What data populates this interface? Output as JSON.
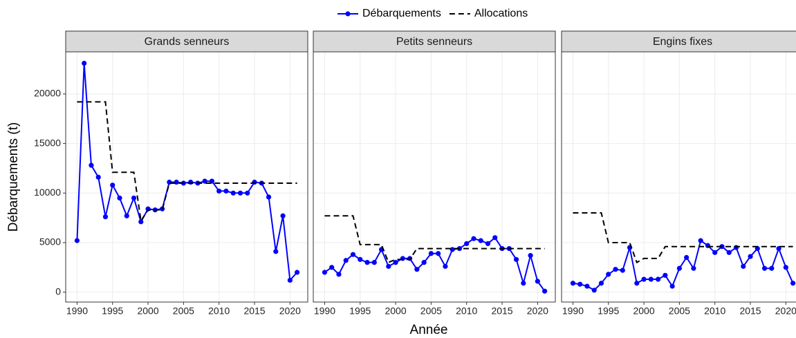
{
  "legend_position": "top",
  "chart_data": [
    {
      "type": "line",
      "title": "Grands senneurs",
      "xlabel": "Année",
      "ylabel": "Débarquements (t)",
      "x": [
        1990,
        1991,
        1992,
        1993,
        1994,
        1995,
        1996,
        1997,
        1998,
        1999,
        2000,
        2001,
        2002,
        2003,
        2004,
        2005,
        2006,
        2007,
        2008,
        2009,
        2010,
        2011,
        2012,
        2013,
        2014,
        2015,
        2016,
        2017,
        2018,
        2019,
        2020,
        2021
      ],
      "xlim": [
        1988.4,
        2022.5
      ],
      "ylim": [
        -1000,
        24250
      ],
      "xticks": [
        1990,
        1995,
        2000,
        2005,
        2010,
        2015,
        2020
      ],
      "yticks": [
        0,
        5000,
        10000,
        15000,
        20000
      ],
      "grid": true,
      "series": [
        {
          "name": "Débarquements",
          "color": "#0000ff",
          "linestyle": "solid",
          "marker": "circle",
          "values": [
            5200,
            23100,
            12800,
            11600,
            7600,
            10800,
            9500,
            7700,
            9500,
            7100,
            8400,
            8300,
            8400,
            11100,
            11100,
            11000,
            11100,
            11000,
            11200,
            11200,
            10200,
            10200,
            10000,
            10000,
            10000,
            11100,
            11000,
            9600,
            4100,
            7700,
            1200,
            2000
          ]
        },
        {
          "name": "Allocations",
          "color": "#000000",
          "linestyle": "dashed",
          "values": [
            19200,
            19200,
            19200,
            19200,
            19200,
            12100,
            12100,
            12100,
            12100,
            7200,
            8300,
            8300,
            8300,
            11000,
            11000,
            11000,
            11000,
            11000,
            11000,
            11000,
            11000,
            11000,
            11000,
            11000,
            11000,
            11000,
            11000,
            11000,
            11000,
            11000,
            11000,
            11000
          ]
        }
      ]
    },
    {
      "type": "line",
      "title": "Petits senneurs",
      "x": [
        1990,
        1991,
        1992,
        1993,
        1994,
        1995,
        1996,
        1997,
        1998,
        1999,
        2000,
        2001,
        2002,
        2003,
        2004,
        2005,
        2006,
        2007,
        2008,
        2009,
        2010,
        2011,
        2012,
        2013,
        2014,
        2015,
        2016,
        2017,
        2018,
        2019,
        2020,
        2021
      ],
      "xlim": [
        1988.4,
        2022.5
      ],
      "ylim": [
        -1000,
        24250
      ],
      "xticks": [
        1990,
        1995,
        2000,
        2005,
        2010,
        2015,
        2020
      ],
      "yticks": [
        0,
        5000,
        10000,
        15000,
        20000
      ],
      "grid": true,
      "series": [
        {
          "color": "#0000ff",
          "linestyle": "solid",
          "marker": "circle",
          "values": [
            2000,
            2500,
            1800,
            3200,
            3800,
            3300,
            3000,
            3000,
            4300,
            2600,
            3000,
            3400,
            3400,
            2300,
            3000,
            3900,
            3900,
            2600,
            4300,
            4400,
            4900,
            5400,
            5200,
            4900,
            5500,
            4400,
            4400,
            3300,
            900,
            3700,
            1100,
            100
          ]
        },
        {
          "color": "#000000",
          "linestyle": "dashed",
          "values": [
            7700,
            7700,
            7700,
            7700,
            7700,
            4800,
            4800,
            4800,
            4800,
            3000,
            3300,
            3300,
            3300,
            4400,
            4400,
            4400,
            4400,
            4400,
            4400,
            4400,
            4400,
            4400,
            4400,
            4400,
            4400,
            4400,
            4400,
            4400,
            4400,
            4400,
            4400,
            4400
          ]
        }
      ]
    },
    {
      "type": "line",
      "title": "Engins fixes",
      "x": [
        1990,
        1991,
        1992,
        1993,
        1994,
        1995,
        1996,
        1997,
        1998,
        1999,
        2000,
        2001,
        2002,
        2003,
        2004,
        2005,
        2006,
        2007,
        2008,
        2009,
        2010,
        2011,
        2012,
        2013,
        2014,
        2015,
        2016,
        2017,
        2018,
        2019,
        2020,
        2021
      ],
      "xlim": [
        1988.4,
        2022.5
      ],
      "ylim": [
        -1000,
        24250
      ],
      "xticks": [
        1990,
        1995,
        2000,
        2005,
        2010,
        2015,
        2020
      ],
      "yticks": [
        0,
        5000,
        10000,
        15000,
        20000
      ],
      "grid": true,
      "series": [
        {
          "color": "#0000ff",
          "linestyle": "solid",
          "marker": "circle",
          "values": [
            900,
            800,
            600,
            200,
            900,
            1800,
            2300,
            2200,
            4500,
            900,
            1300,
            1300,
            1300,
            1700,
            600,
            2400,
            3500,
            2400,
            5200,
            4700,
            4000,
            4600,
            4000,
            4500,
            2600,
            3600,
            4400,
            2400,
            2400,
            4400,
            2500,
            900
          ]
        },
        {
          "color": "#000000",
          "linestyle": "dashed",
          "values": [
            8000,
            8000,
            8000,
            8000,
            8000,
            5000,
            5000,
            5000,
            5000,
            3000,
            3400,
            3400,
            3400,
            4600,
            4600,
            4600,
            4600,
            4600,
            4600,
            4600,
            4600,
            4600,
            4600,
            4600,
            4600,
            4600,
            4600,
            4600,
            4600,
            4600,
            4600,
            4600
          ]
        }
      ]
    }
  ]
}
